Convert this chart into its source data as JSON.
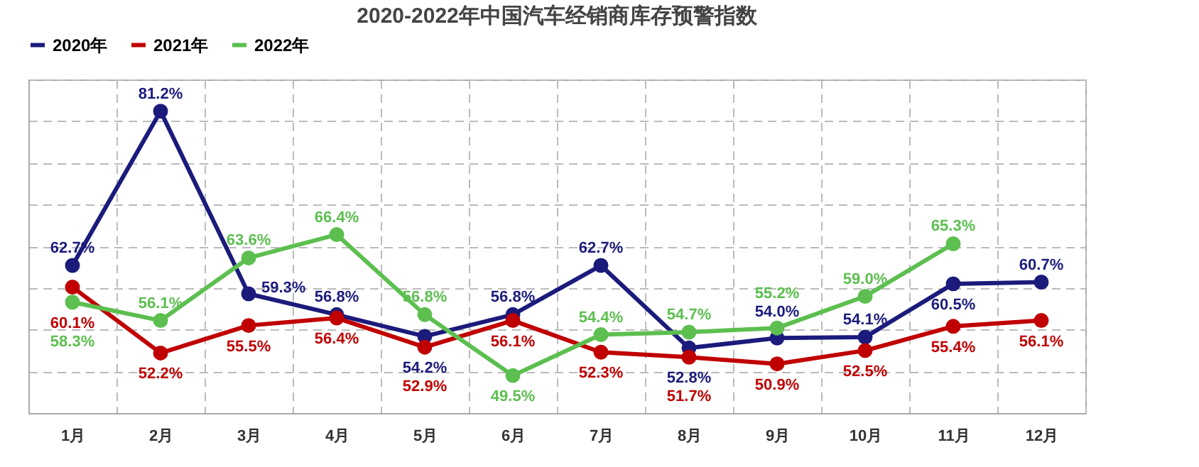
{
  "chart_data": {
    "type": "line",
    "title": "2020-2022年中国汽车经销商库存预警指数",
    "categories": [
      "1月",
      "2月",
      "3月",
      "4月",
      "5月",
      "6月",
      "7月",
      "8月",
      "9月",
      "10月",
      "11月",
      "12月"
    ],
    "series": [
      {
        "name": "2020年",
        "color": "#1b1b7c",
        "values": [
          62.7,
          81.2,
          59.3,
          56.8,
          54.2,
          56.8,
          62.7,
          52.8,
          54.0,
          54.1,
          60.5,
          60.7
        ],
        "value_labels": [
          "62.7%",
          "81.2%",
          "59.3%",
          "56.8%",
          "54.2%",
          "56.8%",
          "62.7%",
          "52.8%",
          "54.0%",
          "54.1%",
          "60.5%",
          "60.7%"
        ]
      },
      {
        "name": "2021年",
        "color": "#c00000",
        "values": [
          60.1,
          52.2,
          55.5,
          56.4,
          52.9,
          56.1,
          52.3,
          51.7,
          50.9,
          52.5,
          55.4,
          56.1
        ],
        "value_labels": [
          "60.1%",
          "52.2%",
          "55.5%",
          "56.4%",
          "52.9%",
          "56.1%",
          "52.3%",
          "51.7%",
          "50.9%",
          "52.5%",
          "55.4%",
          "56.1%"
        ]
      },
      {
        "name": "2022年",
        "color": "#5cbf4f",
        "values": [
          58.3,
          56.1,
          63.6,
          66.4,
          56.8,
          49.5,
          54.4,
          54.7,
          55.2,
          59.0,
          65.3,
          null
        ],
        "value_labels": [
          "58.3%",
          "56.1%",
          "63.6%",
          "66.4%",
          "56.8%",
          "49.5%",
          "54.4%",
          "54.7%",
          "55.2%",
          "59.0%",
          "65.3%",
          null
        ]
      }
    ],
    "tick_labels": "x",
    "grid": true,
    "legend": "top",
    "marker": "circle",
    "line_style": "solid"
  }
}
